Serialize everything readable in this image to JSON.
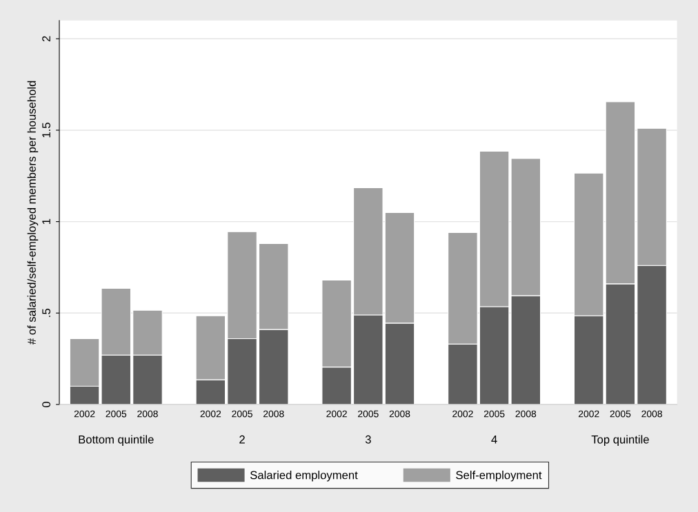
{
  "chart_data": {
    "type": "bar",
    "stacked": true,
    "ylabel": "# of salaried/self-employed members per household",
    "categories": [
      "2002",
      "2005",
      "2008",
      null,
      "2002",
      "2005",
      "2008",
      null,
      "2002",
      "2005",
      "2008",
      null,
      "2002",
      "2005",
      "2008",
      null,
      "2002",
      "2005",
      "2008"
    ],
    "series": [
      {
        "name": "Salaried employment",
        "color": "#5f5f5f",
        "values": [
          0.1,
          0.27,
          0.27,
          null,
          0.135,
          0.36,
          0.41,
          null,
          0.205,
          0.49,
          0.445,
          null,
          0.33,
          0.535,
          0.595,
          null,
          0.485,
          0.66,
          0.76
        ]
      },
      {
        "name": "Self-employment",
        "color": "#a0a0a0",
        "values": [
          0.26,
          0.365,
          0.245,
          null,
          0.35,
          0.585,
          0.47,
          null,
          0.475,
          0.695,
          0.605,
          null,
          0.61,
          0.85,
          0.75,
          null,
          0.78,
          0.995,
          0.75
        ]
      }
    ],
    "annotations": [
      "Bottom quintile",
      "2",
      "3",
      "4",
      "Top quintile"
    ],
    "ylim": [
      0,
      2.1
    ],
    "yticks": [
      0,
      {
        "value": 0.5,
        "label": ".5"
      },
      1,
      1.5,
      2
    ],
    "grid": "y",
    "legend": "bottom"
  }
}
